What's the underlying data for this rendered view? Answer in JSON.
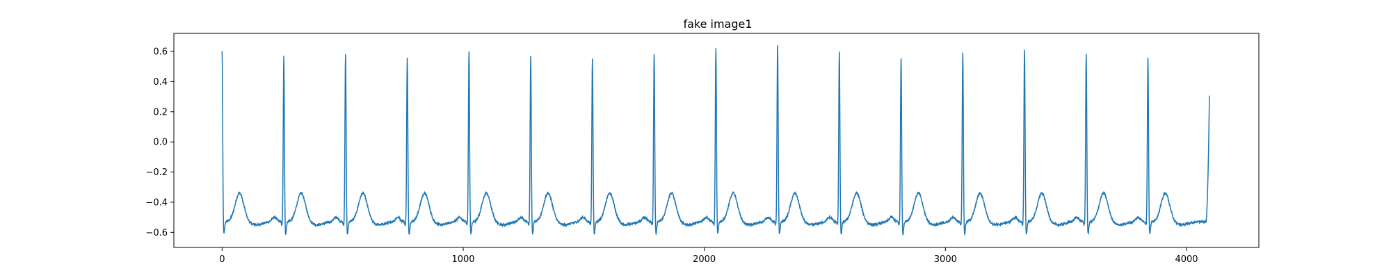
{
  "chart_data": {
    "type": "line",
    "title": "fake image1",
    "xlabel": "",
    "ylabel": "",
    "xlim": [
      -200,
      4300
    ],
    "ylim": [
      -0.7,
      0.72
    ],
    "x_ticks": [
      0,
      1000,
      2000,
      3000,
      4000
    ],
    "x_tick_labels": [
      "0",
      "1000",
      "2000",
      "3000",
      "4000"
    ],
    "y_ticks": [
      -0.6,
      -0.4,
      -0.2,
      0.0,
      0.2,
      0.4,
      0.6
    ],
    "y_tick_labels": [
      "−0.6",
      "−0.4",
      "−0.2",
      "0.0",
      "0.2",
      "0.4",
      "0.6"
    ],
    "grid": false,
    "legend": "none",
    "line_color": "#1f77b4",
    "x_range": [
      0,
      4095
    ],
    "r_peaks": [
      {
        "x": 0,
        "y": 0.61
      },
      {
        "x": 256,
        "y": 0.58
      },
      {
        "x": 512,
        "y": 0.6
      },
      {
        "x": 768,
        "y": 0.57
      },
      {
        "x": 1024,
        "y": 0.61
      },
      {
        "x": 1280,
        "y": 0.58
      },
      {
        "x": 1536,
        "y": 0.57
      },
      {
        "x": 1792,
        "y": 0.59
      },
      {
        "x": 2048,
        "y": 0.63
      },
      {
        "x": 2304,
        "y": 0.65
      },
      {
        "x": 2560,
        "y": 0.61
      },
      {
        "x": 2816,
        "y": 0.57
      },
      {
        "x": 3072,
        "y": 0.61
      },
      {
        "x": 3328,
        "y": 0.62
      },
      {
        "x": 3584,
        "y": 0.6
      },
      {
        "x": 3840,
        "y": 0.57
      }
    ],
    "end_value": {
      "x": 4095,
      "y": 0.31
    },
    "baseline": -0.53,
    "trough": -0.61,
    "t_wave_peak": -0.36
  }
}
